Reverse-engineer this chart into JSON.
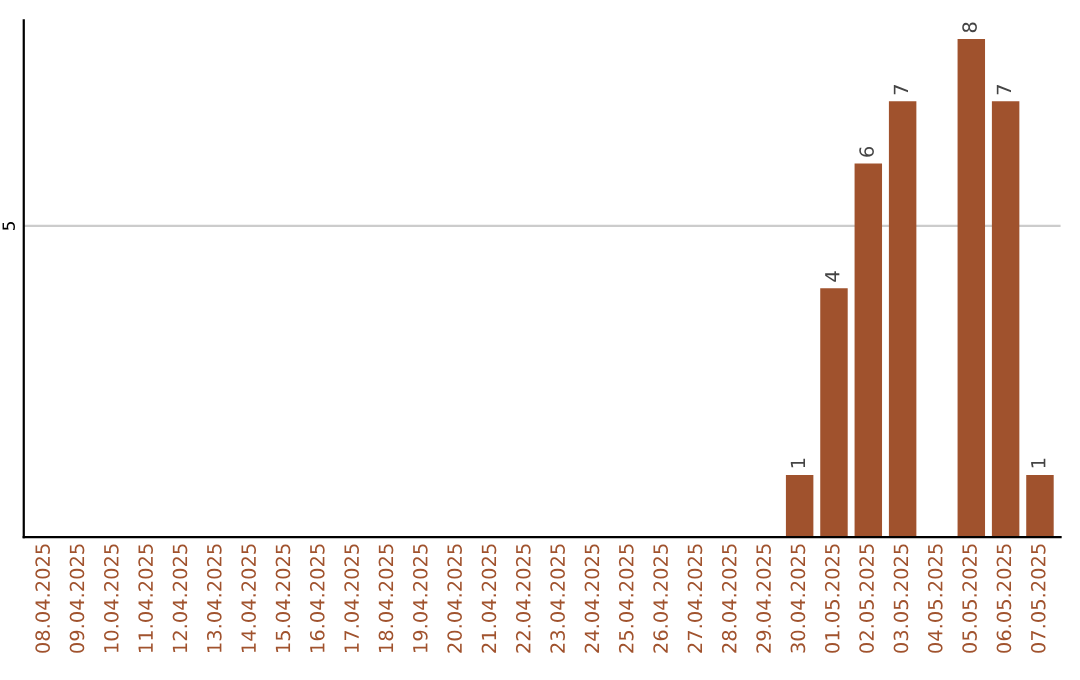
{
  "chart_data": {
    "type": "bar",
    "categories": [
      "08.04.2025",
      "09.04.2025",
      "10.04.2025",
      "11.04.2025",
      "12.04.2025",
      "13.04.2025",
      "14.04.2025",
      "15.04.2025",
      "16.04.2025",
      "17.04.2025",
      "18.04.2025",
      "19.04.2025",
      "20.04.2025",
      "21.04.2025",
      "22.04.2025",
      "23.04.2025",
      "24.04.2025",
      "25.04.2025",
      "26.04.2025",
      "27.04.2025",
      "28.04.2025",
      "29.04.2025",
      "30.04.2025",
      "01.05.2025",
      "02.05.2025",
      "03.05.2025",
      "04.05.2025",
      "05.05.2025",
      "06.05.2025",
      "07.05.2025"
    ],
    "values": [
      null,
      null,
      null,
      null,
      null,
      null,
      null,
      null,
      null,
      null,
      null,
      null,
      null,
      null,
      null,
      null,
      null,
      null,
      null,
      null,
      null,
      null,
      1,
      4,
      6,
      7,
      null,
      8,
      7,
      1
    ],
    "color": "#a0522d",
    "ylim": [
      0,
      8.3
    ],
    "yticks": [
      5
    ],
    "grid": "y",
    "data_labels": true
  }
}
